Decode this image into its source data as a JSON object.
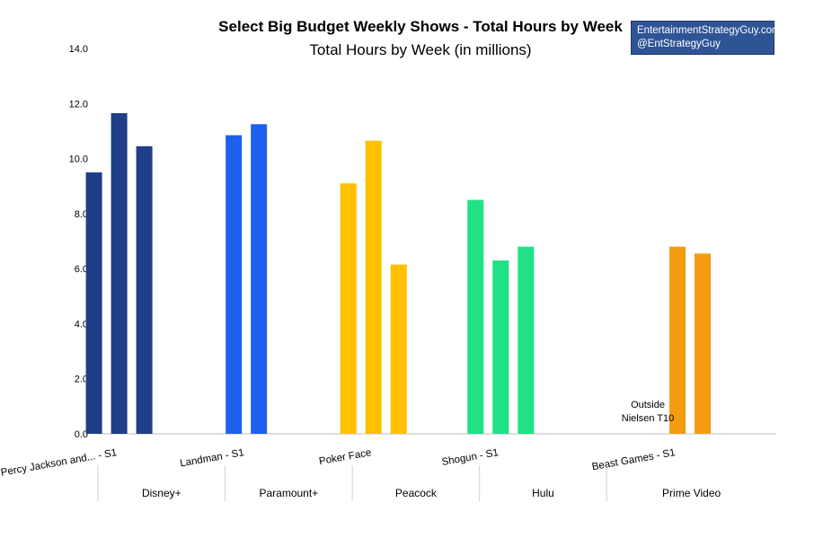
{
  "chart_data": {
    "type": "bar",
    "title": "Select Big Budget Weekly Shows - Total Hours by Week",
    "subtitle": "Total Hours by Week (in millions)",
    "ylim": [
      0,
      14
    ],
    "yticks": [
      "0.0",
      "2.0",
      "4.0",
      "6.0",
      "8.0",
      "10.0",
      "12.0",
      "14.0"
    ],
    "grid": false,
    "groups": [
      {
        "name": "Disney+",
        "show": "Percy Jackson and... - S1",
        "values": [
          9.5,
          11.65,
          10.45
        ],
        "color": "#1f3e87"
      },
      {
        "name": "Paramount+",
        "show": "Landman - S1",
        "values": [
          10.85,
          11.25
        ],
        "color": "#1f5ff0"
      },
      {
        "name": "Peacock",
        "show": "Poker Face",
        "values": [
          9.1,
          10.65,
          6.15
        ],
        "color": "#ffc000"
      },
      {
        "name": "Hulu",
        "show": "Shogun - S1",
        "values": [
          8.5,
          6.3,
          6.8
        ],
        "color": "#21e186"
      },
      {
        "name": "Prime Video",
        "show": "Beast Games - S1",
        "values": [
          null,
          6.8,
          6.55
        ],
        "color": "#f59b0f"
      }
    ],
    "annotation": [
      "Outside",
      "Nielsen T10"
    ]
  },
  "credit": {
    "line1": "EntertainmentStrategyGuy.com",
    "line2": "@EntStrategyGuy"
  }
}
